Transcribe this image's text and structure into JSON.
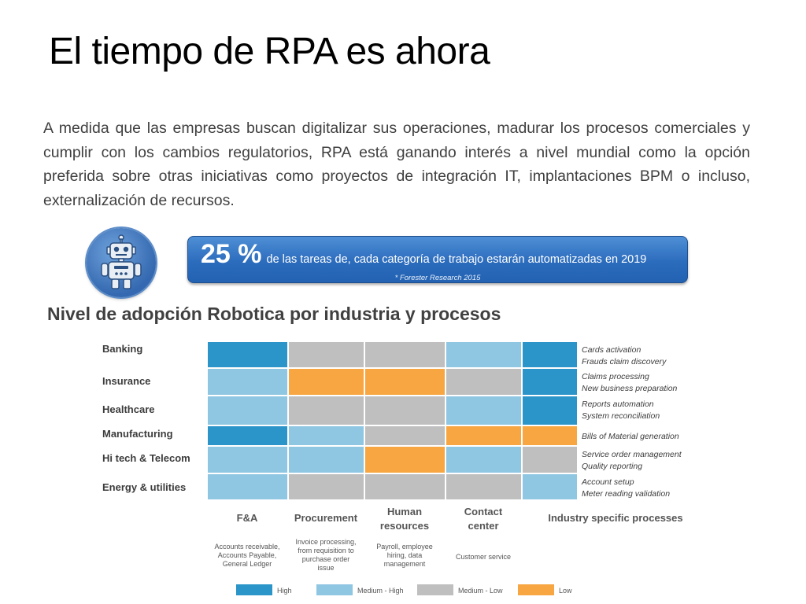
{
  "title": "El tiempo de RPA es ahora",
  "paragraph": "A medida que las empresas buscan digitalizar sus operaciones, madurar los procesos comerciales y cumplir con los cambios regulatorios, RPA está ganando interés a nivel mundial como la opción preferida sobre otras iniciativas como proyectos de integración IT, implantaciones BPM o incluso, externalización de recursos.",
  "stat": {
    "value": "25 %",
    "text": "de las tareas de, cada categoría de trabajo estarán automatizadas en  2019",
    "source": "* Forester Research 2015"
  },
  "icons": {
    "badge": "robot-icon"
  },
  "colors": {
    "High": "#2b94c9",
    "Medium - High": "#8fc6e2",
    "Medium - Low": "#bfbfbf",
    "Low": "#f7a641"
  },
  "chart_data": {
    "type": "heatmap",
    "title": "Nivel de adopción Robotica por industria y procesos",
    "rows": [
      "Banking",
      "Insurance",
      "Healthcare",
      "Manufacturing",
      "Hi tech & Telecom",
      "Energy & utilities"
    ],
    "columns": [
      {
        "label": [
          "F&A"
        ],
        "description": [
          "Accounts receivable,",
          "Accounts Payable,",
          "General Ledger"
        ]
      },
      {
        "label": [
          "Procurement"
        ],
        "description": [
          "Invoice processing,",
          "from requisition to",
          "purchase order",
          "issue"
        ]
      },
      {
        "label": [
          "Human",
          "resources"
        ],
        "description": [
          "Payroll, employee",
          "hiring, data",
          "management"
        ]
      },
      {
        "label": [
          "Contact",
          "center"
        ],
        "description": [
          "Customer service"
        ]
      },
      {
        "label": [
          "Industry specific processes"
        ],
        "description": []
      }
    ],
    "values": [
      [
        "High",
        "Medium - Low",
        "Medium - Low",
        "Medium - High",
        "High"
      ],
      [
        "Medium - High",
        "Low",
        "Low",
        "Medium - Low",
        "High"
      ],
      [
        "Medium - High",
        "Medium - Low",
        "Medium - Low",
        "Medium - High",
        "High"
      ],
      [
        "High",
        "Medium - High",
        "Medium - Low",
        "Low",
        "Low"
      ],
      [
        "Medium - High",
        "Medium - High",
        "Low",
        "Medium - High",
        "Medium - Low"
      ],
      [
        "Medium - High",
        "Medium - Low",
        "Medium - Low",
        "Medium - Low",
        "Medium - High"
      ]
    ],
    "industry_processes": [
      [
        "Cards activation",
        "Frauds claim discovery"
      ],
      [
        "Claims processing",
        "New business preparation"
      ],
      [
        "Reports automation",
        "System reconciliation"
      ],
      [
        "Bills of Material generation"
      ],
      [
        "Service order management",
        "Quality reporting"
      ],
      [
        "Account setup",
        "Meter reading validation"
      ]
    ],
    "legend": [
      "High",
      "Medium - High",
      "Medium - Low",
      "Low"
    ]
  }
}
